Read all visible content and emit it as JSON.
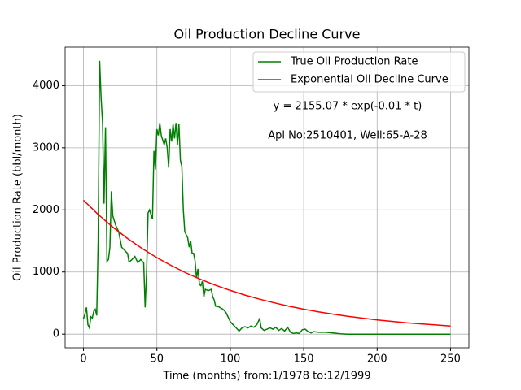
{
  "chart_data": {
    "type": "line",
    "title": "Oil Production Decline Curve",
    "x_label": "Time (months) from:1/1978 to:12/1999",
    "y_label": "Oil Production Rate (bbl/month)",
    "annotations": [
      "y = 2155.07 * exp(-0.01 * t)",
      "Api No:2510401, Well:65-A-28"
    ],
    "xlim": [
      -12.5,
      262.5
    ],
    "ylim": [
      -220,
      4620
    ],
    "xticks": [
      0,
      50,
      100,
      150,
      200,
      250
    ],
    "yticks": [
      0,
      1000,
      2000,
      3000,
      4000
    ],
    "grid": true,
    "legend": "upper right",
    "series": [
      {
        "name": "True Oil Production Rate",
        "color": "#008000",
        "x": [
          0,
          1,
          2,
          3,
          4,
          5,
          6,
          7,
          8,
          9,
          10,
          11,
          12,
          13,
          14,
          15,
          16,
          17,
          18,
          19,
          20,
          22,
          24,
          26,
          28,
          30,
          31,
          33,
          35,
          37,
          39,
          41,
          42,
          43,
          44,
          45,
          47,
          48,
          49,
          50,
          51,
          52,
          53,
          55,
          56,
          57,
          58,
          59,
          60,
          61,
          62,
          63,
          64,
          65,
          66,
          67,
          68,
          69,
          70,
          71,
          72,
          73,
          74,
          75,
          76,
          77,
          78,
          79,
          80,
          81,
          82,
          83,
          85,
          87,
          88,
          89,
          90,
          92,
          95,
          97,
          99,
          100,
          102,
          104,
          106,
          108,
          110,
          112,
          114,
          116,
          118,
          120,
          121,
          123,
          125,
          127,
          129,
          131,
          133,
          135,
          137,
          139,
          141,
          143,
          145,
          147,
          149,
          151,
          153,
          155,
          157,
          160,
          165,
          170,
          175,
          180,
          200,
          220,
          250
        ],
        "values": [
          250,
          320,
          430,
          150,
          100,
          280,
          260,
          370,
          400,
          300,
          1500,
          4400,
          3800,
          3400,
          2100,
          3330,
          1170,
          1200,
          1400,
          2300,
          1900,
          1750,
          1650,
          1400,
          1350,
          1300,
          1160,
          1200,
          1250,
          1150,
          1200,
          1150,
          430,
          1000,
          1950,
          2000,
          1850,
          2950,
          2650,
          3300,
          3200,
          3400,
          3200,
          3050,
          3150,
          3000,
          2680,
          3300,
          3100,
          3380,
          3150,
          3400,
          3050,
          3380,
          2800,
          2700,
          2000,
          1650,
          1600,
          1550,
          1400,
          1500,
          1300,
          1300,
          1180,
          900,
          1050,
          800,
          780,
          850,
          600,
          720,
          700,
          720,
          600,
          550,
          450,
          440,
          400,
          350,
          250,
          200,
          150,
          100,
          50,
          100,
          120,
          100,
          130,
          110,
          150,
          250,
          100,
          60,
          80,
          100,
          80,
          110,
          60,
          90,
          50,
          110,
          30,
          10,
          20,
          10,
          70,
          80,
          40,
          20,
          40,
          30,
          30,
          20,
          5,
          0,
          0,
          0,
          0
        ]
      },
      {
        "name": "Exponential Oil Decline Curve",
        "color": "#ff0000",
        "x": [
          0,
          10,
          20,
          30,
          40,
          50,
          60,
          70,
          80,
          90,
          100,
          110,
          120,
          130,
          140,
          150,
          160,
          170,
          180,
          190,
          200,
          210,
          220,
          230,
          240,
          250
        ],
        "values": [
          2155,
          1927,
          1723,
          1540,
          1377,
          1231,
          1101,
          984,
          880,
          786,
          703,
          629,
          562,
          503,
          449,
          402,
          359,
          321,
          287,
          257,
          229,
          205,
          183,
          164,
          147,
          131
        ]
      }
    ]
  }
}
